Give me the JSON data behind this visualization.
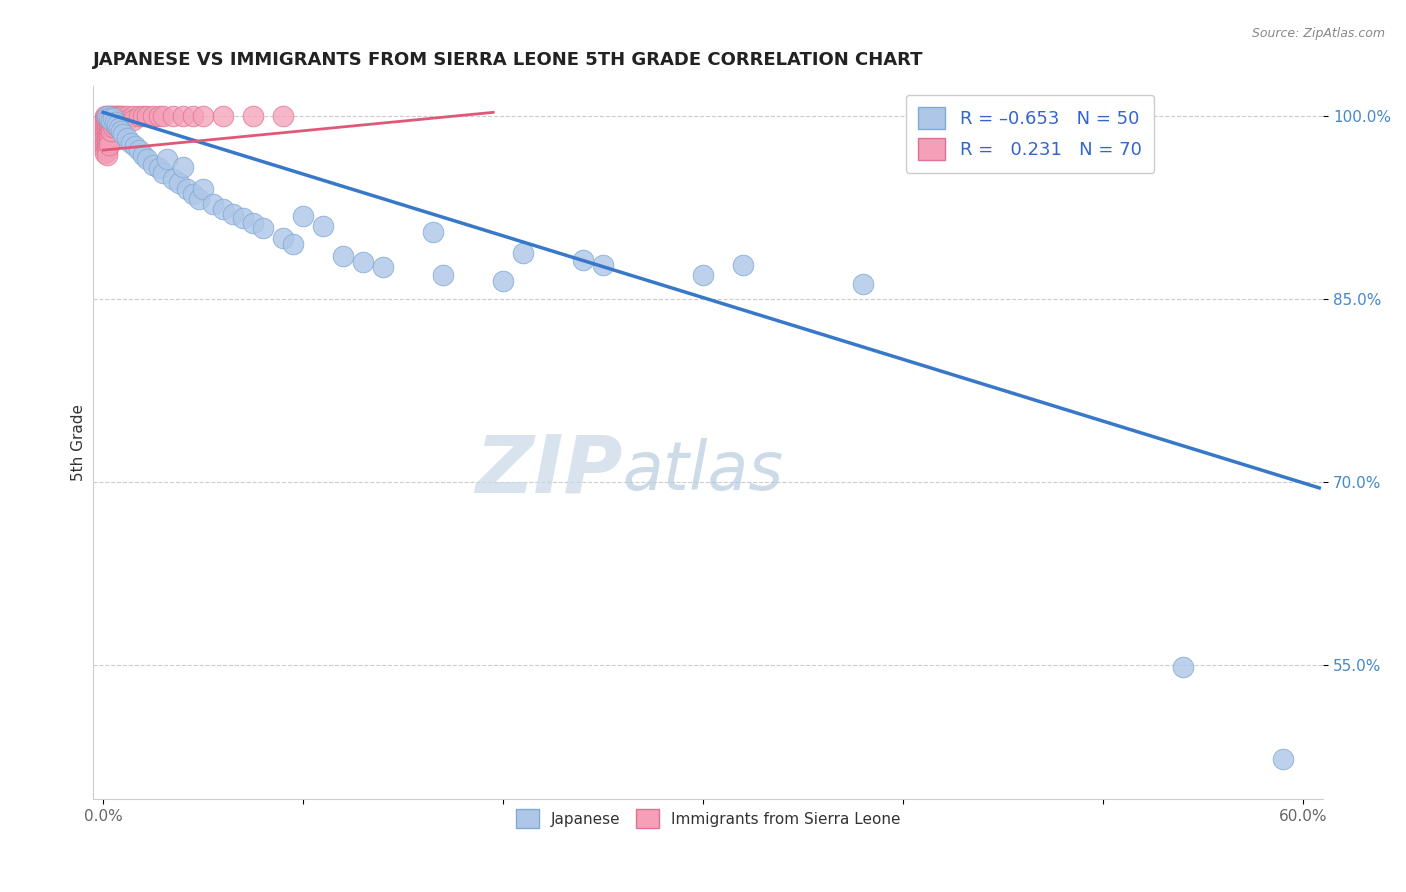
{
  "title": "JAPANESE VS IMMIGRANTS FROM SIERRA LEONE 5TH GRADE CORRELATION CHART",
  "source_text": "Source: ZipAtlas.com",
  "ylabel": "5th Grade",
  "xlim": [
    -0.005,
    0.61
  ],
  "ylim": [
    0.44,
    1.025
  ],
  "xtick_positions": [
    0.0,
    0.1,
    0.2,
    0.3,
    0.4,
    0.5,
    0.6
  ],
  "xticklabels": [
    "0.0%",
    "",
    "",
    "",
    "",
    "",
    "60.0%"
  ],
  "ytick_positions": [
    0.55,
    0.7,
    0.85,
    1.0
  ],
  "yticklabels": [
    "55.0%",
    "70.0%",
    "85.0%",
    "100.0%"
  ],
  "blue_color": "#aec6e8",
  "pink_color": "#f4a0b8",
  "blue_edge": "#80aad4",
  "pink_edge": "#e07090",
  "trend_blue": "#3878c8",
  "trend_pink": "#e05878",
  "watermark_zip": "ZIP",
  "watermark_atlas": "atlas",
  "watermark_color": "#d0dce8",
  "blue_trend_x": [
    0.0,
    0.608
  ],
  "blue_trend_y": [
    1.003,
    0.695
  ],
  "pink_trend_x": [
    0.0,
    0.195
  ],
  "pink_trend_y": [
    0.972,
    1.003
  ],
  "blue_scatter": [
    [
      0.002,
      1.0
    ],
    [
      0.003,
      0.998
    ],
    [
      0.004,
      0.997
    ],
    [
      0.005,
      0.998
    ],
    [
      0.006,
      0.995
    ],
    [
      0.007,
      0.993
    ],
    [
      0.008,
      0.99
    ],
    [
      0.009,
      0.988
    ],
    [
      0.01,
      0.985
    ],
    [
      0.012,
      0.982
    ],
    [
      0.014,
      0.978
    ],
    [
      0.016,
      0.975
    ],
    [
      0.018,
      0.972
    ],
    [
      0.02,
      0.968
    ],
    [
      0.022,
      0.965
    ],
    [
      0.025,
      0.96
    ],
    [
      0.028,
      0.957
    ],
    [
      0.03,
      0.953
    ],
    [
      0.032,
      0.965
    ],
    [
      0.035,
      0.948
    ],
    [
      0.038,
      0.945
    ],
    [
      0.04,
      0.958
    ],
    [
      0.042,
      0.94
    ],
    [
      0.045,
      0.936
    ],
    [
      0.048,
      0.932
    ],
    [
      0.05,
      0.94
    ],
    [
      0.055,
      0.928
    ],
    [
      0.06,
      0.924
    ],
    [
      0.065,
      0.92
    ],
    [
      0.07,
      0.916
    ],
    [
      0.075,
      0.912
    ],
    [
      0.08,
      0.908
    ],
    [
      0.09,
      0.9
    ],
    [
      0.095,
      0.895
    ],
    [
      0.1,
      0.918
    ],
    [
      0.11,
      0.91
    ],
    [
      0.12,
      0.885
    ],
    [
      0.13,
      0.88
    ],
    [
      0.14,
      0.876
    ],
    [
      0.165,
      0.905
    ],
    [
      0.17,
      0.87
    ],
    [
      0.2,
      0.865
    ],
    [
      0.21,
      0.888
    ],
    [
      0.24,
      0.882
    ],
    [
      0.25,
      0.878
    ],
    [
      0.3,
      0.87
    ],
    [
      0.32,
      0.878
    ],
    [
      0.38,
      0.862
    ],
    [
      0.54,
      0.548
    ],
    [
      0.59,
      0.473
    ]
  ],
  "pink_scatter": [
    [
      0.001,
      1.0
    ],
    [
      0.001,
      0.998
    ],
    [
      0.001,
      0.996
    ],
    [
      0.001,
      0.993
    ],
    [
      0.001,
      0.99
    ],
    [
      0.001,
      0.988
    ],
    [
      0.001,
      0.985
    ],
    [
      0.001,
      0.982
    ],
    [
      0.001,
      0.979
    ],
    [
      0.001,
      0.976
    ],
    [
      0.001,
      0.973
    ],
    [
      0.001,
      0.97
    ],
    [
      0.002,
      1.0
    ],
    [
      0.002,
      0.998
    ],
    [
      0.002,
      0.995
    ],
    [
      0.002,
      0.992
    ],
    [
      0.002,
      0.989
    ],
    [
      0.002,
      0.986
    ],
    [
      0.002,
      0.983
    ],
    [
      0.002,
      0.98
    ],
    [
      0.002,
      0.977
    ],
    [
      0.002,
      0.974
    ],
    [
      0.002,
      0.971
    ],
    [
      0.002,
      0.968
    ],
    [
      0.003,
      1.0
    ],
    [
      0.003,
      0.997
    ],
    [
      0.003,
      0.994
    ],
    [
      0.003,
      0.991
    ],
    [
      0.003,
      0.988
    ],
    [
      0.003,
      0.985
    ],
    [
      0.003,
      0.982
    ],
    [
      0.003,
      0.979
    ],
    [
      0.003,
      0.976
    ],
    [
      0.004,
      1.0
    ],
    [
      0.004,
      0.997
    ],
    [
      0.004,
      0.994
    ],
    [
      0.004,
      0.991
    ],
    [
      0.004,
      0.988
    ],
    [
      0.005,
      1.0
    ],
    [
      0.005,
      0.997
    ],
    [
      0.005,
      0.994
    ],
    [
      0.005,
      0.991
    ],
    [
      0.006,
      1.0
    ],
    [
      0.006,
      0.997
    ],
    [
      0.006,
      0.993
    ],
    [
      0.007,
      1.0
    ],
    [
      0.007,
      0.997
    ],
    [
      0.008,
      1.0
    ],
    [
      0.008,
      0.996
    ],
    [
      0.009,
      1.0
    ],
    [
      0.009,
      0.997
    ],
    [
      0.01,
      1.0
    ],
    [
      0.01,
      0.997
    ],
    [
      0.012,
      1.0
    ],
    [
      0.012,
      0.997
    ],
    [
      0.015,
      1.0
    ],
    [
      0.015,
      0.997
    ],
    [
      0.018,
      1.0
    ],
    [
      0.02,
      1.0
    ],
    [
      0.022,
      1.0
    ],
    [
      0.025,
      1.0
    ],
    [
      0.028,
      1.0
    ],
    [
      0.03,
      1.0
    ],
    [
      0.035,
      1.0
    ],
    [
      0.04,
      1.0
    ],
    [
      0.045,
      1.0
    ],
    [
      0.05,
      1.0
    ],
    [
      0.06,
      1.0
    ],
    [
      0.075,
      1.0
    ],
    [
      0.09,
      1.0
    ]
  ]
}
